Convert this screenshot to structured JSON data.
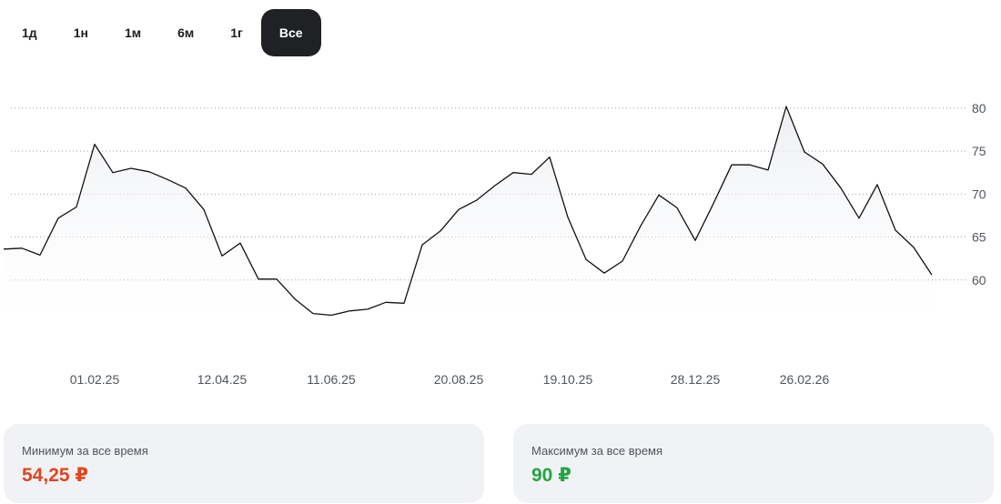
{
  "periods": {
    "items": [
      "1д",
      "1н",
      "1м",
      "6м",
      "1г",
      "Все"
    ],
    "active": "Все"
  },
  "chart_data": {
    "type": "area",
    "y_axis_side": "right",
    "ylim": [
      55,
      82
    ],
    "yticks": [
      60,
      65,
      70,
      75,
      80
    ],
    "grid": "horizontal-dotted",
    "xlim": [
      0,
      52
    ],
    "xtick_labels": [
      {
        "x": 5,
        "label": "01.02.25"
      },
      {
        "x": 12,
        "label": "12.04.25"
      },
      {
        "x": 18,
        "label": "11.06.25"
      },
      {
        "x": 25,
        "label": "20.08.25"
      },
      {
        "x": 31,
        "label": "19.10.25"
      },
      {
        "x": 38,
        "label": "28.12.25"
      },
      {
        "x": 44,
        "label": "26.02.26"
      }
    ],
    "series": [
      {
        "color": "#111111",
        "values": [
          63.6,
          63.7,
          62.9,
          67.2,
          68.5,
          75.8,
          72.5,
          73.0,
          72.6,
          71.7,
          70.7,
          68.2,
          62.8,
          64.3,
          60.1,
          60.1,
          57.8,
          56.1,
          55.9,
          56.4,
          56.6,
          57.4,
          57.3,
          64.1,
          65.7,
          68.2,
          69.3,
          71.0,
          72.5,
          72.3,
          74.3,
          67.3,
          62.4,
          60.8,
          62.2,
          66.3,
          69.9,
          68.4,
          64.6,
          68.9,
          73.4,
          73.4,
          72.8,
          80.2,
          74.9,
          73.5,
          70.7,
          67.2,
          71.1,
          65.8,
          63.8,
          60.6
        ]
      }
    ]
  },
  "stats": {
    "min": {
      "label": "Минимум за все время",
      "value": "54,25 ₽",
      "color": "#e0461f"
    },
    "max": {
      "label": "Максимум за все время",
      "value": "90 ₽",
      "color": "#20a542"
    }
  }
}
